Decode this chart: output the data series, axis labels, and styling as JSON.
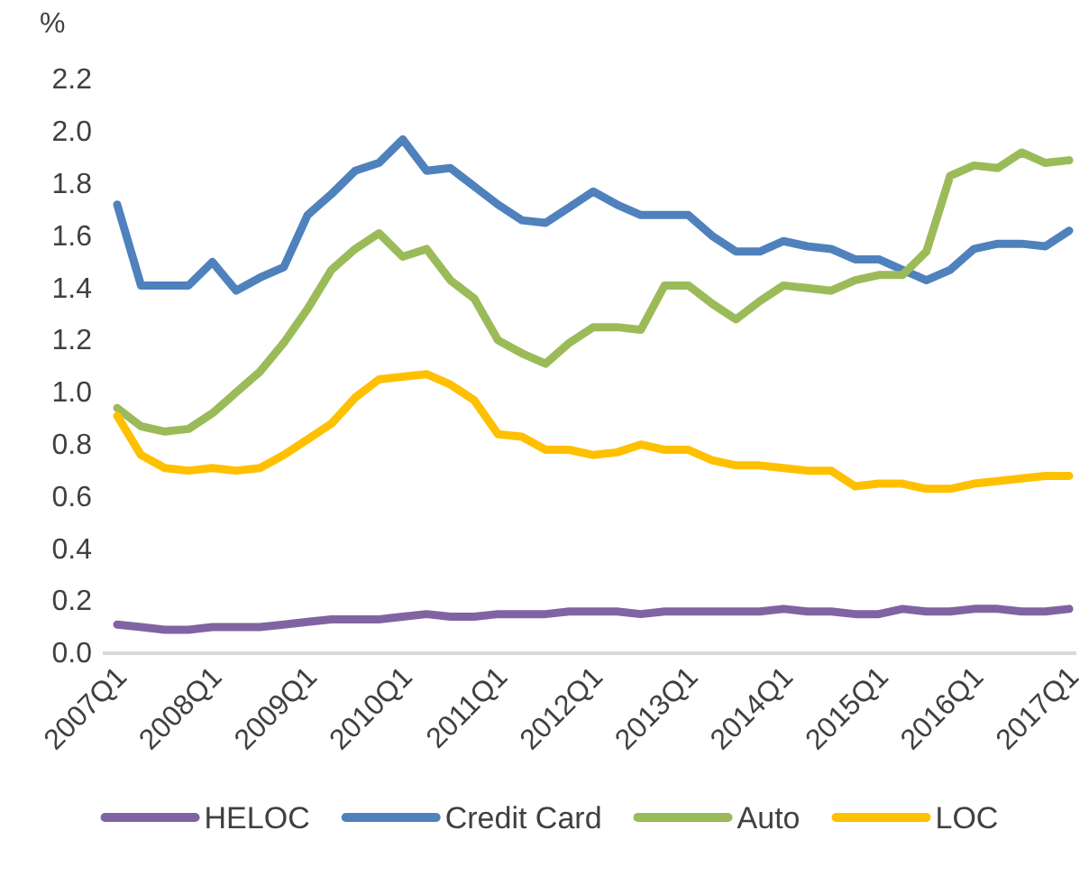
{
  "chart_data": {
    "type": "line",
    "ylabel": "%",
    "categories": [
      "2007Q1",
      null,
      null,
      null,
      "2008Q1",
      null,
      null,
      null,
      "2009Q1",
      null,
      null,
      null,
      "2010Q1",
      null,
      null,
      null,
      "2011Q1",
      null,
      null,
      null,
      "2012Q1",
      null,
      null,
      null,
      "2013Q1",
      null,
      null,
      null,
      "2014Q1",
      null,
      null,
      null,
      "2015Q1",
      null,
      null,
      null,
      "2016Q1",
      null,
      null,
      null,
      "2017Q1"
    ],
    "ylim": [
      0,
      2.2
    ],
    "yticks": [
      {
        "value": 0,
        "label": "0.0"
      },
      0.2,
      0.4,
      0.6,
      0.8,
      {
        "value": 1,
        "label": "1.0"
      },
      1.2,
      1.4,
      1.6,
      1.8,
      {
        "value": 2,
        "label": "2.0"
      },
      2.2
    ],
    "grid": false,
    "legend": "bottom",
    "line_style": "solid",
    "marker": "none",
    "series": [
      {
        "name": "HELOC",
        "color": "#8064a2",
        "values": [
          0.11,
          0.1,
          0.09,
          0.09,
          0.1,
          0.1,
          0.1,
          0.11,
          0.12,
          0.13,
          0.13,
          0.13,
          0.14,
          0.15,
          0.14,
          0.14,
          0.15,
          0.15,
          0.15,
          0.16,
          0.16,
          0.16,
          0.15,
          0.16,
          0.16,
          0.16,
          0.16,
          0.16,
          0.17,
          0.16,
          0.16,
          0.15,
          0.15,
          0.17,
          0.16,
          0.16,
          0.17,
          0.17,
          0.16,
          0.16,
          0.17
        ]
      },
      {
        "name": "Credit Card",
        "color": "#4f81bd",
        "values": [
          1.72,
          1.41,
          1.41,
          1.41,
          1.5,
          1.39,
          1.44,
          1.48,
          1.68,
          1.76,
          1.85,
          1.88,
          1.97,
          1.85,
          1.86,
          1.79,
          1.72,
          1.66,
          1.65,
          1.71,
          1.77,
          1.72,
          1.68,
          1.68,
          1.68,
          1.6,
          1.54,
          1.54,
          1.58,
          1.56,
          1.55,
          1.51,
          1.51,
          1.47,
          1.43,
          1.47,
          1.55,
          1.57,
          1.57,
          1.56,
          1.62
        ]
      },
      {
        "name": "Auto",
        "color": "#9bbb59",
        "values": [
          0.94,
          0.87,
          0.85,
          0.86,
          0.92,
          1.0,
          1.08,
          1.19,
          1.32,
          1.47,
          1.55,
          1.61,
          1.52,
          1.55,
          1.43,
          1.36,
          1.2,
          1.15,
          1.11,
          1.19,
          1.25,
          1.25,
          1.24,
          1.41,
          1.41,
          1.34,
          1.28,
          1.35,
          1.41,
          1.4,
          1.39,
          1.43,
          1.45,
          1.45,
          1.54,
          1.83,
          1.87,
          1.86,
          1.92,
          1.88,
          1.89
        ]
      },
      {
        "name": "LOC",
        "color": "#ffc000",
        "values": [
          0.91,
          0.76,
          0.71,
          0.7,
          0.71,
          0.7,
          0.71,
          0.76,
          0.82,
          0.88,
          0.98,
          1.05,
          1.06,
          1.07,
          1.03,
          0.97,
          0.84,
          0.83,
          0.78,
          0.78,
          0.76,
          0.77,
          0.8,
          0.78,
          0.78,
          0.74,
          0.72,
          0.72,
          0.71,
          0.7,
          0.7,
          0.64,
          0.65,
          0.65,
          0.63,
          0.63,
          0.65,
          0.66,
          0.67,
          0.68,
          0.68
        ]
      }
    ]
  }
}
